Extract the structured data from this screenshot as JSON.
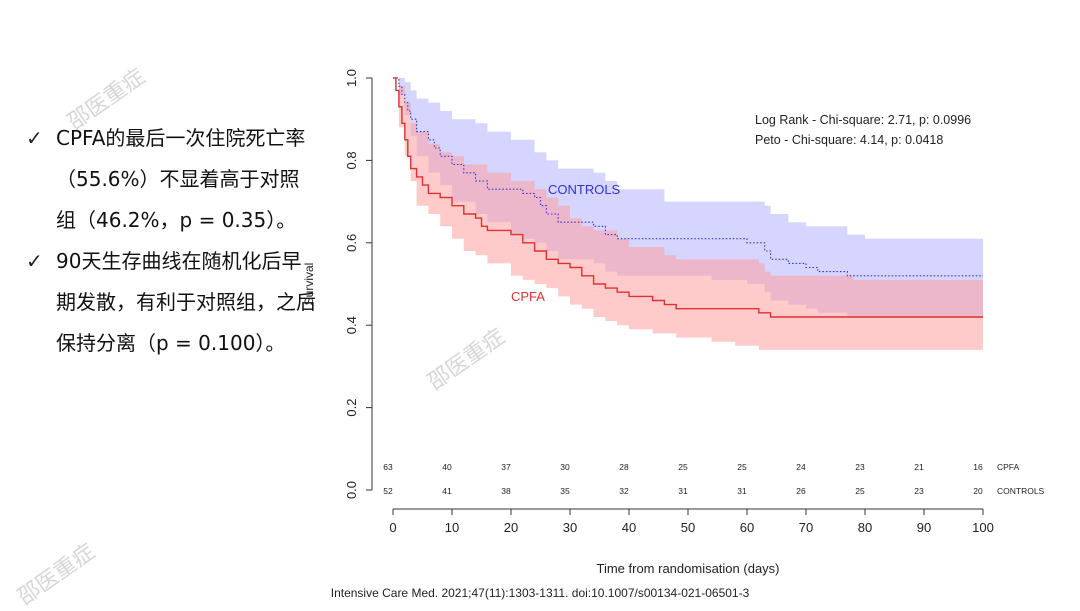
{
  "bullets": [
    {
      "icon": "checkmark-icon",
      "text": "CPFA的最后一次住院死亡率（55.6%）不显着高于对照组（46.2%，p = 0.35）。"
    },
    {
      "icon": "checkmark-icon",
      "text": "90天生存曲线在随机化后早期发散，有利于对照组，之后保持分离（p = 0.100）。"
    }
  ],
  "watermark_text": "邵医重症",
  "citation": "Intensive Care Med. 2021;47(11):1303-1311. doi:10.1007/s00134-021-06501-3",
  "chart_data": {
    "type": "line",
    "xlabel": "Time from randomisation (days)",
    "ylabel": "Survival",
    "xlim": [
      0,
      100
    ],
    "ylim": [
      0,
      1
    ],
    "x_ticks": [
      0,
      10,
      20,
      30,
      40,
      50,
      60,
      70,
      80,
      90,
      100
    ],
    "y_ticks": [
      "0.0",
      "0.2",
      "0.4",
      "0.6",
      "0.8",
      "1.0"
    ],
    "annotations": [
      "Log Rank - Chi-square: 2.71, p: 0.0996",
      "Peto - Chi-square: 4.14, p: 0.0418"
    ],
    "series": [
      {
        "name": "CONTROLS",
        "color": "#3333cc",
        "band_color": "#b3b3ff",
        "line_style": "dotted",
        "points": [
          [
            0,
            1.0
          ],
          [
            1,
            0.98
          ],
          [
            1.5,
            0.96
          ],
          [
            2,
            0.94
          ],
          [
            2.5,
            0.92
          ],
          [
            3,
            0.9
          ],
          [
            4,
            0.87
          ],
          [
            6,
            0.85
          ],
          [
            7,
            0.83
          ],
          [
            8,
            0.81
          ],
          [
            10,
            0.79
          ],
          [
            12,
            0.77
          ],
          [
            14,
            0.75
          ],
          [
            16,
            0.73
          ],
          [
            20,
            0.73
          ],
          [
            22,
            0.72
          ],
          [
            24,
            0.71
          ],
          [
            25,
            0.69
          ],
          [
            26,
            0.67
          ],
          [
            28,
            0.65
          ],
          [
            34,
            0.64
          ],
          [
            36,
            0.62
          ],
          [
            38,
            0.61
          ],
          [
            42,
            0.61
          ],
          [
            46,
            0.61
          ],
          [
            54,
            0.61
          ],
          [
            60,
            0.6
          ],
          [
            63,
            0.58
          ],
          [
            64,
            0.56
          ],
          [
            67,
            0.55
          ],
          [
            70,
            0.54
          ],
          [
            72,
            0.53
          ],
          [
            75,
            0.53
          ],
          [
            77,
            0.52
          ],
          [
            100,
            0.52
          ]
        ],
        "upper": [
          [
            0,
            1.0
          ],
          [
            1,
            1.0
          ],
          [
            2,
            0.99
          ],
          [
            3,
            0.97
          ],
          [
            4,
            0.95
          ],
          [
            6,
            0.94
          ],
          [
            8,
            0.92
          ],
          [
            10,
            0.9
          ],
          [
            14,
            0.89
          ],
          [
            16,
            0.87
          ],
          [
            20,
            0.85
          ],
          [
            24,
            0.82
          ],
          [
            26,
            0.8
          ],
          [
            28,
            0.78
          ],
          [
            34,
            0.77
          ],
          [
            36,
            0.75
          ],
          [
            38,
            0.73
          ],
          [
            42,
            0.73
          ],
          [
            46,
            0.7
          ],
          [
            54,
            0.7
          ],
          [
            60,
            0.7
          ],
          [
            63,
            0.69
          ],
          [
            64,
            0.67
          ],
          [
            67,
            0.65
          ],
          [
            70,
            0.64
          ],
          [
            77,
            0.62
          ],
          [
            80,
            0.61
          ],
          [
            100,
            0.61
          ]
        ],
        "lower": [
          [
            0,
            1.0
          ],
          [
            1,
            0.96
          ],
          [
            2,
            0.91
          ],
          [
            3,
            0.86
          ],
          [
            4,
            0.81
          ],
          [
            6,
            0.77
          ],
          [
            8,
            0.74
          ],
          [
            10,
            0.7
          ],
          [
            14,
            0.67
          ],
          [
            16,
            0.65
          ],
          [
            20,
            0.62
          ],
          [
            22,
            0.61
          ],
          [
            24,
            0.6
          ],
          [
            26,
            0.58
          ],
          [
            28,
            0.56
          ],
          [
            34,
            0.55
          ],
          [
            36,
            0.53
          ],
          [
            38,
            0.52
          ],
          [
            42,
            0.52
          ],
          [
            46,
            0.52
          ],
          [
            54,
            0.51
          ],
          [
            60,
            0.5
          ],
          [
            63,
            0.48
          ],
          [
            64,
            0.46
          ],
          [
            67,
            0.45
          ],
          [
            70,
            0.44
          ],
          [
            72,
            0.43
          ],
          [
            77,
            0.42
          ],
          [
            80,
            0.42
          ],
          [
            100,
            0.42
          ]
        ]
      },
      {
        "name": "CPFA",
        "color": "#e03030",
        "band_color": "#ff9e9e",
        "line_style": "solid",
        "points": [
          [
            0,
            1.0
          ],
          [
            0.5,
            0.97
          ],
          [
            1,
            0.93
          ],
          [
            1.5,
            0.89
          ],
          [
            2,
            0.85
          ],
          [
            2.5,
            0.81
          ],
          [
            3,
            0.78
          ],
          [
            4,
            0.76
          ],
          [
            5,
            0.74
          ],
          [
            6,
            0.72
          ],
          [
            8,
            0.71
          ],
          [
            10,
            0.69
          ],
          [
            12,
            0.67
          ],
          [
            14,
            0.66
          ],
          [
            15,
            0.64
          ],
          [
            16,
            0.63
          ],
          [
            18,
            0.63
          ],
          [
            20,
            0.62
          ],
          [
            22,
            0.6
          ],
          [
            24,
            0.58
          ],
          [
            26,
            0.56
          ],
          [
            28,
            0.55
          ],
          [
            30,
            0.54
          ],
          [
            32,
            0.52
          ],
          [
            34,
            0.5
          ],
          [
            36,
            0.49
          ],
          [
            38,
            0.48
          ],
          [
            40,
            0.47
          ],
          [
            44,
            0.46
          ],
          [
            46,
            0.45
          ],
          [
            48,
            0.44
          ],
          [
            54,
            0.44
          ],
          [
            62,
            0.43
          ],
          [
            63,
            0.43
          ],
          [
            64,
            0.42
          ],
          [
            66,
            0.42
          ],
          [
            72,
            0.42
          ],
          [
            78,
            0.42
          ],
          [
            100,
            0.42
          ]
        ],
        "upper": [
          [
            0,
            1.0
          ],
          [
            1,
            0.98
          ],
          [
            2,
            0.94
          ],
          [
            3,
            0.89
          ],
          [
            4,
            0.87
          ],
          [
            6,
            0.84
          ],
          [
            8,
            0.82
          ],
          [
            10,
            0.81
          ],
          [
            12,
            0.79
          ],
          [
            16,
            0.77
          ],
          [
            20,
            0.75
          ],
          [
            24,
            0.73
          ],
          [
            26,
            0.71
          ],
          [
            28,
            0.69
          ],
          [
            30,
            0.66
          ],
          [
            32,
            0.64
          ],
          [
            34,
            0.63
          ],
          [
            38,
            0.61
          ],
          [
            40,
            0.59
          ],
          [
            46,
            0.57
          ],
          [
            48,
            0.56
          ],
          [
            62,
            0.55
          ],
          [
            63,
            0.53
          ],
          [
            64,
            0.52
          ],
          [
            66,
            0.52
          ],
          [
            78,
            0.51
          ],
          [
            100,
            0.51
          ]
        ],
        "lower": [
          [
            0,
            1.0
          ],
          [
            1,
            0.88
          ],
          [
            2,
            0.81
          ],
          [
            3,
            0.75
          ],
          [
            4,
            0.69
          ],
          [
            6,
            0.67
          ],
          [
            8,
            0.64
          ],
          [
            10,
            0.61
          ],
          [
            12,
            0.58
          ],
          [
            14,
            0.57
          ],
          [
            16,
            0.55
          ],
          [
            20,
            0.52
          ],
          [
            22,
            0.51
          ],
          [
            24,
            0.5
          ],
          [
            26,
            0.49
          ],
          [
            28,
            0.47
          ],
          [
            30,
            0.45
          ],
          [
            32,
            0.44
          ],
          [
            34,
            0.42
          ],
          [
            36,
            0.41
          ],
          [
            38,
            0.4
          ],
          [
            40,
            0.39
          ],
          [
            44,
            0.38
          ],
          [
            48,
            0.37
          ],
          [
            54,
            0.36
          ],
          [
            58,
            0.35
          ],
          [
            62,
            0.34
          ],
          [
            64,
            0.34
          ],
          [
            66,
            0.34
          ],
          [
            72,
            0.34
          ],
          [
            78,
            0.34
          ],
          [
            100,
            0.34
          ]
        ]
      }
    ],
    "at_risk": {
      "times": [
        0,
        10,
        20,
        30,
        40,
        50,
        60,
        70,
        80,
        90,
        100
      ],
      "rows": [
        {
          "label": "CPFA",
          "counts": [
            63,
            40,
            37,
            30,
            28,
            25,
            25,
            24,
            23,
            21,
            16
          ]
        },
        {
          "label": "CONTROLS",
          "counts": [
            52,
            41,
            38,
            35,
            32,
            31,
            31,
            26,
            25,
            23,
            20
          ]
        }
      ]
    }
  }
}
